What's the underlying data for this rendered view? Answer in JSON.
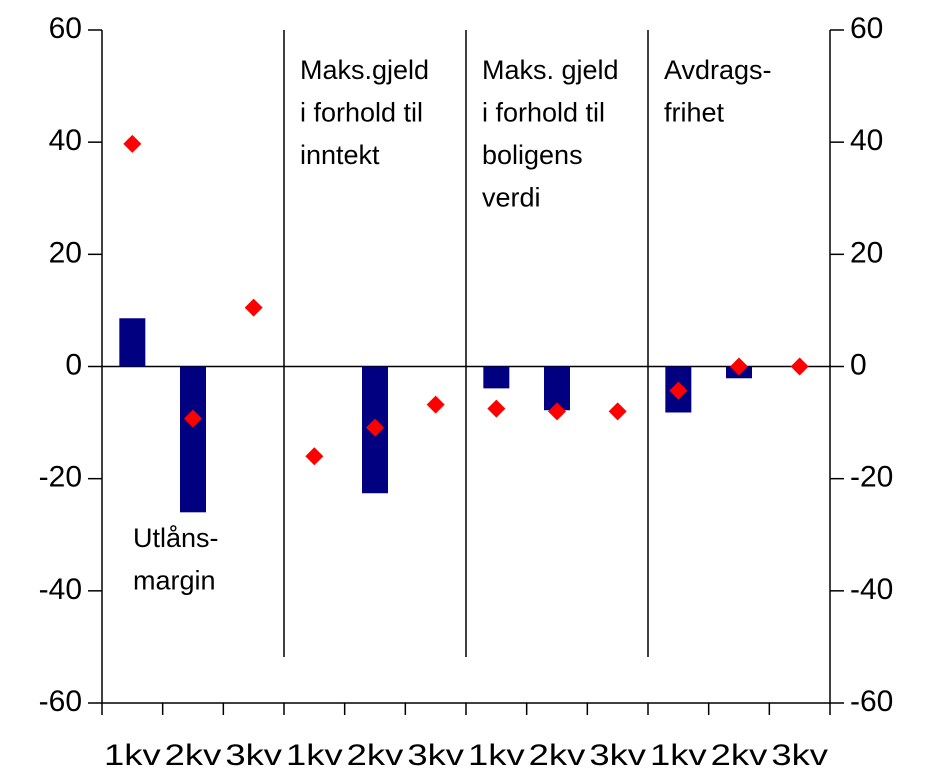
{
  "chart_data": {
    "type": "bar",
    "categories": [
      "1kv",
      "2kv",
      "3kv",
      "1kv",
      "2kv",
      "3kv",
      "1kv",
      "2kv",
      "3kv",
      "1kv",
      "2kv",
      "3kv"
    ],
    "series": [
      {
        "type": "bar",
        "color": "#000080",
        "values": [
          8.6,
          -26,
          null,
          null,
          -22.6,
          null,
          -3.9,
          -7.8,
          null,
          -8.2,
          -2.1,
          null
        ]
      },
      {
        "type": "scatter",
        "color": "#ff0000",
        "values": [
          39.7,
          -9.3,
          10.5,
          -16,
          -10.9,
          -6.8,
          -7.5,
          -8,
          -8,
          -4.3,
          0,
          0
        ]
      }
    ],
    "ylim": [
      -60,
      60
    ],
    "yticks": [
      -60,
      -40,
      -20,
      0,
      20,
      40,
      60
    ],
    "y2lim": [
      -60,
      60
    ],
    "y2ticks": [
      -60,
      -40,
      -20,
      0,
      20,
      40,
      60
    ],
    "annotations": [
      [
        "Utlåns-",
        "margin"
      ],
      [
        "Maks.gjeld",
        "i forhold til",
        "inntekt"
      ],
      [
        "Maks. gjeld",
        "i forhold til",
        "boligens",
        "verdi"
      ],
      [
        "Avdrags-",
        "frihet"
      ]
    ]
  }
}
